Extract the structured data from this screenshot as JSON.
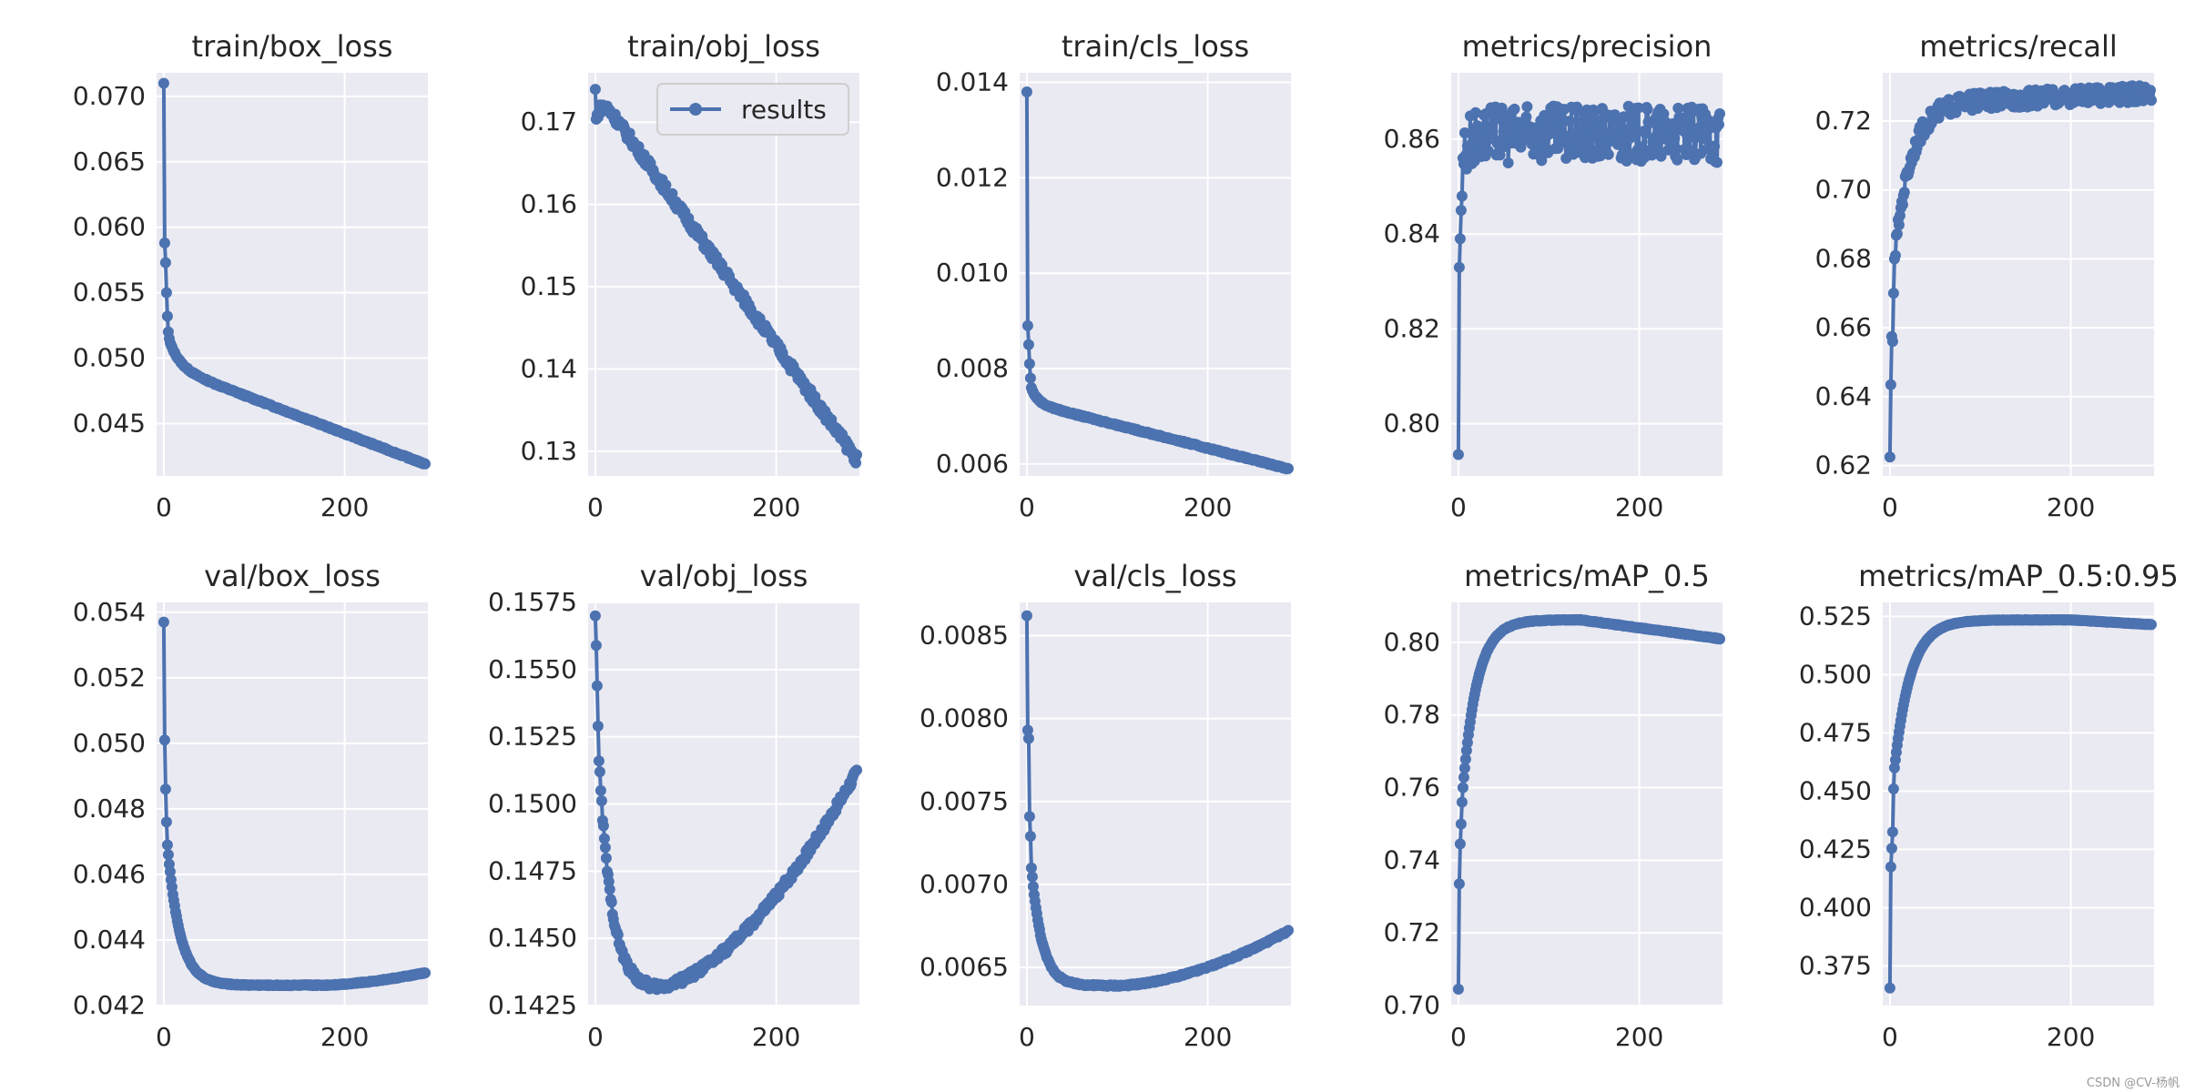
{
  "watermark": "CSDN @CV-杨帆",
  "style": {
    "line_color": "#4c72b0",
    "panel_bg": "#eaeaf2",
    "grid_color": "#ffffff",
    "text_color": "#262626"
  },
  "chart_data": [
    {
      "type": "line",
      "title": "train/box_loss",
      "xlim": [
        -8,
        292
      ],
      "ylim": [
        0.041,
        0.0718
      ],
      "xticks": [
        0,
        200
      ],
      "xtick_labels": [
        "0",
        "200"
      ],
      "yticks": [
        0.045,
        0.05,
        0.055,
        0.06,
        0.065,
        0.07
      ],
      "ytick_labels": [
        "0.045",
        "0.050",
        "0.055",
        "0.060",
        "0.065",
        "0.070"
      ],
      "shape": {
        "kind": "decay_tail",
        "start": 0.071,
        "early": [
          0.0588,
          0.0573,
          0.055,
          0.0532,
          0.052,
          0.0515
        ],
        "plateau": 0.0495,
        "k": 12,
        "end": 0.0419,
        "slope": -2e-05,
        "noise": 0.0001,
        "n": 290
      },
      "grid": true
    },
    {
      "type": "line",
      "title": "train/obj_loss",
      "legend": {
        "labels": [
          "results"
        ],
        "loc": "upper right"
      },
      "xlim": [
        -8,
        292
      ],
      "ylim": [
        0.127,
        0.176
      ],
      "xticks": [
        0,
        200
      ],
      "xtick_labels": [
        "0",
        "200"
      ],
      "yticks": [
        0.13,
        0.14,
        0.15,
        0.16,
        0.17
      ],
      "ytick_labels": [
        "0.13",
        "0.14",
        "0.15",
        "0.16",
        "0.17"
      ],
      "shape": {
        "kind": "convex_decay",
        "start": 0.174,
        "plateau": 0.163,
        "k": 5,
        "mid": 0.142,
        "end": 0.129,
        "noise": 0.0012,
        "n": 290
      },
      "grid": true
    },
    {
      "type": "line",
      "title": "train/cls_loss",
      "xlim": [
        -8,
        292
      ],
      "ylim": [
        0.00575,
        0.0142
      ],
      "xticks": [
        0,
        200
      ],
      "xtick_labels": [
        "0",
        "200"
      ],
      "yticks": [
        0.006,
        0.008,
        0.01,
        0.012,
        0.014
      ],
      "ytick_labels": [
        "0.006",
        "0.008",
        "0.010",
        "0.012",
        "0.014"
      ],
      "shape": {
        "kind": "decay_tail",
        "start": 0.0138,
        "early": [
          0.0089,
          0.0085,
          0.0081,
          0.0078,
          0.0076
        ],
        "plateau": 0.0073,
        "k": 8,
        "end": 0.0059,
        "slope": -5e-06,
        "noise": 3e-05,
        "n": 290
      },
      "grid": true
    },
    {
      "type": "line",
      "title": "metrics/precision",
      "xlim": [
        -8,
        292
      ],
      "ylim": [
        0.789,
        0.874
      ],
      "xticks": [
        0,
        200
      ],
      "xtick_labels": [
        "0",
        "200"
      ],
      "yticks": [
        0.8,
        0.82,
        0.84,
        0.86
      ],
      "ytick_labels": [
        "0.80",
        "0.82",
        "0.84",
        "0.86"
      ],
      "shape": {
        "kind": "rise_noisy",
        "start": 0.7935,
        "early": [
          0.833,
          0.839,
          0.845,
          0.848,
          0.856
        ],
        "level": 0.861,
        "k": 6,
        "noise": 0.006,
        "end": 0.861,
        "n": 290
      },
      "grid": true
    },
    {
      "type": "line",
      "title": "metrics/recall",
      "xlim": [
        -8,
        292
      ],
      "ylim": [
        0.617,
        0.734
      ],
      "xticks": [
        0,
        200
      ],
      "xtick_labels": [
        "0",
        "200"
      ],
      "yticks": [
        0.62,
        0.64,
        0.66,
        0.68,
        0.7,
        0.72
      ],
      "ytick_labels": [
        "0.62",
        "0.64",
        "0.66",
        "0.68",
        "0.70",
        "0.72"
      ],
      "shape": {
        "kind": "rise_noisy",
        "start": 0.6225,
        "early": [
          0.6435,
          0.6575,
          0.656,
          0.67,
          0.68
        ],
        "level": 0.725,
        "k": 18,
        "noise": 0.0025,
        "end": 0.728,
        "n": 290
      },
      "grid": true
    },
    {
      "type": "line",
      "title": "val/box_loss",
      "xlim": [
        -8,
        292
      ],
      "ylim": [
        0.042,
        0.0543
      ],
      "xticks": [
        0,
        200
      ],
      "xtick_labels": [
        "0",
        "200"
      ],
      "yticks": [
        0.042,
        0.044,
        0.046,
        0.048,
        0.05,
        0.052,
        0.054
      ],
      "ytick_labels": [
        "0.042",
        "0.044",
        "0.046",
        "0.048",
        "0.050",
        "0.052",
        "0.054"
      ],
      "shape": {
        "kind": "u_curve",
        "start": 0.0537,
        "early": [
          0.0501,
          0.0486,
          0.0476,
          0.0469,
          0.0466
        ],
        "min": 0.04262,
        "k": 14,
        "min_x": 170,
        "end": 0.043,
        "noise": 3e-05,
        "n": 290
      },
      "grid": true
    },
    {
      "type": "line",
      "title": "val/obj_loss",
      "xlim": [
        -8,
        292
      ],
      "ylim": [
        0.1425,
        0.1575
      ],
      "xticks": [
        0,
        200
      ],
      "xtick_labels": [
        "0",
        "200"
      ],
      "yticks": [
        0.1425,
        0.145,
        0.1475,
        0.15,
        0.1525,
        0.155,
        0.1575
      ],
      "ytick_labels": [
        "0.1425",
        "0.1450",
        "0.1475",
        "0.1500",
        "0.1525",
        "0.1550",
        "0.1575"
      ],
      "shape": {
        "kind": "u_curve",
        "start": 0.157,
        "early": [
          0.1559,
          0.1544,
          0.1529,
          0.1516,
          0.1512,
          0.1505
        ],
        "min": 0.1431,
        "k": 14,
        "min_x": 60,
        "end": 0.1512,
        "noise": 0.0003,
        "n": 290
      },
      "grid": true
    },
    {
      "type": "line",
      "title": "val/cls_loss",
      "xlim": [
        -8,
        292
      ],
      "ylim": [
        0.00627,
        0.0087
      ],
      "xticks": [
        0,
        200
      ],
      "xtick_labels": [
        "0",
        "200"
      ],
      "yticks": [
        0.0065,
        0.007,
        0.0075,
        0.008,
        0.0085
      ],
      "ytick_labels": [
        "0.0065",
        "0.0070",
        "0.0075",
        "0.0080",
        "0.0085"
      ],
      "shape": {
        "kind": "u_curve",
        "start": 0.00862,
        "early": [
          0.00793,
          0.00788,
          0.00741,
          0.00729,
          0.0071
        ],
        "min": 0.00639,
        "k": 12,
        "min_x": 100,
        "end": 0.00672,
        "noise": 1e-05,
        "n": 290
      },
      "grid": true
    },
    {
      "type": "line",
      "title": "metrics/mAP_0.5",
      "xlim": [
        -8,
        292
      ],
      "ylim": [
        0.7,
        0.811
      ],
      "xticks": [
        0,
        200
      ],
      "xtick_labels": [
        "0",
        "200"
      ],
      "yticks": [
        0.7,
        0.72,
        0.74,
        0.76,
        0.78,
        0.8
      ],
      "ytick_labels": [
        "0.70",
        "0.72",
        "0.74",
        "0.76",
        "0.78",
        "0.80"
      ],
      "shape": {
        "kind": "rise_peak",
        "start": 0.7045,
        "early": [
          0.7335,
          0.7445,
          0.75,
          0.756,
          0.76
        ],
        "level": 0.8062,
        "k": 16,
        "peak_x": 135,
        "end": 0.801,
        "noise": 0.0002,
        "n": 290
      },
      "grid": true
    },
    {
      "type": "line",
      "title": "metrics/mAP_0.5:0.95",
      "xlim": [
        -8,
        292
      ],
      "ylim": [
        0.358,
        0.531
      ],
      "xticks": [
        0,
        200
      ],
      "xtick_labels": [
        "0",
        "200"
      ],
      "yticks": [
        0.375,
        0.4,
        0.425,
        0.45,
        0.475,
        0.5,
        0.525
      ],
      "ytick_labels": [
        "0.375",
        "0.400",
        "0.425",
        "0.450",
        "0.475",
        "0.500",
        "0.525"
      ],
      "shape": {
        "kind": "rise_peak",
        "start": 0.3655,
        "early": [
          0.4175,
          0.4255,
          0.4325,
          0.451,
          0.46
        ],
        "level": 0.5235,
        "k": 18,
        "peak_x": 200,
        "end": 0.5215,
        "noise": 0.0002,
        "n": 290
      },
      "grid": true
    }
  ]
}
